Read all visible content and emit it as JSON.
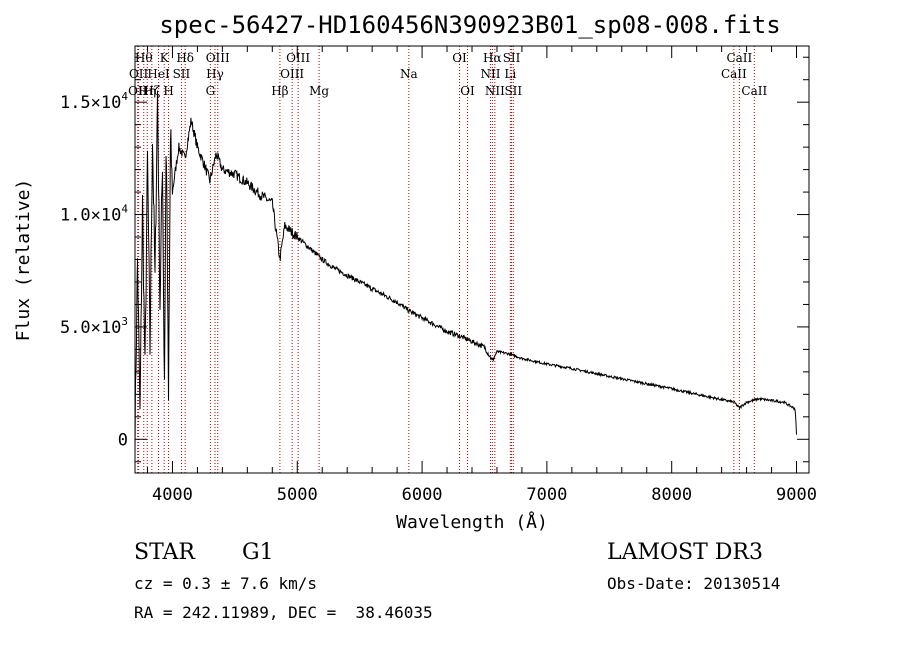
{
  "chart_data": {
    "type": "line",
    "title": "spec-56427-HD160456N390923B01_sp08-008.fits",
    "xlabel": "Wavelength (Å)",
    "ylabel": "Flux (relative)",
    "xlim": [
      3700,
      9100
    ],
    "ylim": [
      -1500,
      17500
    ],
    "x_ticks": [
      {
        "value": 4000,
        "label": "4000"
      },
      {
        "value": 5000,
        "label": "5000"
      },
      {
        "value": 6000,
        "label": "6000"
      },
      {
        "value": 7000,
        "label": "7000"
      },
      {
        "value": 8000,
        "label": "8000"
      },
      {
        "value": 9000,
        "label": "9000"
      }
    ],
    "y_ticks": [
      {
        "value": 0,
        "label": "0",
        "mantissa": "",
        "exponent": ""
      },
      {
        "value": 5000,
        "label": "",
        "mantissa": "5.0×10",
        "exponent": "3"
      },
      {
        "value": 10000,
        "label": "",
        "mantissa": "1.0×10",
        "exponent": "4"
      },
      {
        "value": 15000,
        "label": "",
        "mantissa": "1.5×10",
        "exponent": "4"
      }
    ],
    "spectrum": {
      "name": "flux",
      "anchors": [
        [
          3700,
          300
        ],
        [
          3720,
          8000
        ],
        [
          3740,
          1000
        ],
        [
          3760,
          10500
        ],
        [
          3780,
          3000
        ],
        [
          3800,
          12500
        ],
        [
          3820,
          4000
        ],
        [
          3840,
          13500
        ],
        [
          3860,
          7000
        ],
        [
          3880,
          15500
        ],
        [
          3900,
          6000
        ],
        [
          3920,
          12500
        ],
        [
          3935,
          2000
        ],
        [
          3950,
          14000
        ],
        [
          3968,
          1500
        ],
        [
          3985,
          13500
        ],
        [
          4000,
          11000
        ],
        [
          4050,
          13000
        ],
        [
          4100,
          12500
        ],
        [
          4150,
          14200
        ],
        [
          4200,
          13000
        ],
        [
          4250,
          12300
        ],
        [
          4300,
          11500
        ],
        [
          4350,
          12700
        ],
        [
          4400,
          12000
        ],
        [
          4500,
          11800
        ],
        [
          4600,
          11400
        ],
        [
          4700,
          10900
        ],
        [
          4800,
          10500
        ],
        [
          4861,
          8000
        ],
        [
          4900,
          9500
        ],
        [
          5000,
          9000
        ],
        [
          5100,
          8500
        ],
        [
          5200,
          8000
        ],
        [
          5300,
          7600
        ],
        [
          5400,
          7300
        ],
        [
          5500,
          7000
        ],
        [
          5600,
          6700
        ],
        [
          5700,
          6400
        ],
        [
          5800,
          6100
        ],
        [
          5900,
          5700
        ],
        [
          6000,
          5400
        ],
        [
          6100,
          5100
        ],
        [
          6200,
          4800
        ],
        [
          6300,
          4600
        ],
        [
          6400,
          4350
        ],
        [
          6500,
          4100
        ],
        [
          6563,
          3500
        ],
        [
          6600,
          3900
        ],
        [
          6700,
          3800
        ],
        [
          6800,
          3600
        ],
        [
          7000,
          3350
        ],
        [
          7200,
          3150
        ],
        [
          7500,
          2800
        ],
        [
          8000,
          2250
        ],
        [
          8200,
          2000
        ],
        [
          8500,
          1650
        ],
        [
          8542,
          1400
        ],
        [
          8600,
          1650
        ],
        [
          8700,
          1800
        ],
        [
          8900,
          1650
        ],
        [
          8990,
          1350
        ],
        [
          9000,
          200
        ]
      ]
    },
    "spectral_lines": [
      {
        "wavelength": 3722,
        "label": "OII",
        "row": 2
      },
      {
        "wavelength": 3729,
        "label": "OII",
        "row": 1
      },
      {
        "wavelength": 3770,
        "label": "Hθ",
        "row": 0
      },
      {
        "wavelength": 3798,
        "label": "Hη",
        "row": 2
      },
      {
        "wavelength": 3835,
        "label": "Hζ",
        "row": 2
      },
      {
        "wavelength": 3889,
        "label": "HeI",
        "row": 1
      },
      {
        "wavelength": 3934,
        "label": "K",
        "row": 0
      },
      {
        "wavelength": 3969,
        "label": "H",
        "row": 2
      },
      {
        "wavelength": 4072,
        "label": "SII",
        "row": 1
      },
      {
        "wavelength": 4102,
        "label": "Hδ",
        "row": 0
      },
      {
        "wavelength": 4304,
        "label": "G",
        "row": 2
      },
      {
        "wavelength": 4341,
        "label": "Hγ",
        "row": 1
      },
      {
        "wavelength": 4363,
        "label": "OIII",
        "row": 0
      },
      {
        "wavelength": 4861,
        "label": "Hβ",
        "row": 2
      },
      {
        "wavelength": 4959,
        "label": "OIII",
        "row": 1
      },
      {
        "wavelength": 5007,
        "label": "OIII",
        "row": 0
      },
      {
        "wavelength": 5175,
        "label": "Mg",
        "row": 2
      },
      {
        "wavelength": 5894,
        "label": "Na",
        "row": 1
      },
      {
        "wavelength": 6300,
        "label": "OI",
        "row": 0
      },
      {
        "wavelength": 6364,
        "label": "OI",
        "row": 2
      },
      {
        "wavelength": 6548,
        "label": "NII",
        "row": 1
      },
      {
        "wavelength": 6563,
        "label": "Hα",
        "row": 0
      },
      {
        "wavelength": 6583,
        "label": "NII",
        "row": 2
      },
      {
        "wavelength": 6707,
        "label": "Li",
        "row": 1
      },
      {
        "wavelength": 6717,
        "label": "SII",
        "row": 0
      },
      {
        "wavelength": 6731,
        "label": "SII",
        "row": 2
      },
      {
        "wavelength": 8498,
        "label": "CaII",
        "row": 1
      },
      {
        "wavelength": 8542,
        "label": "CaII",
        "row": 0
      },
      {
        "wavelength": 8662,
        "label": "CaII",
        "row": 2
      }
    ],
    "colors": {
      "spectrum": "#000000",
      "lines": "#c00000",
      "axes": "#000000"
    }
  },
  "info": {
    "object_class": "STAR",
    "subclass": "G1",
    "redshift": "cz = 0.3 ± 7.6 km/s",
    "coords": "RA = 242.11989, DEC =  38.46035",
    "survey": "LAMOST DR3",
    "obs_date": "Obs-Date: 20130514"
  }
}
